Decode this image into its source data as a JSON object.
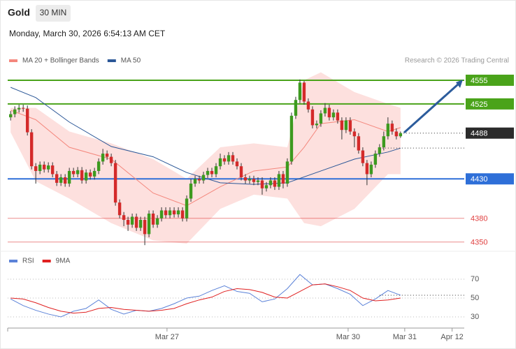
{
  "header": {
    "symbol": "Gold",
    "interval": "30 MIN",
    "timestamp": "Monday, March 30, 2026 6:54:13 AM CET",
    "copyright": "Research © 2026 Trading Central"
  },
  "chart_data": [
    {
      "type": "candlestick",
      "xlim": [
        -0.7,
        108.2
      ],
      "ylim": [
        4340,
        4570
      ],
      "up_color": "#3d9a1f",
      "down_color": "#d42a2a",
      "candles": {
        "open": [
          4508,
          4512,
          4518,
          4520,
          4519,
          4489,
          4446,
          4440,
          4448,
          4442,
          4447,
          4436,
          4425,
          4432,
          4424,
          4440,
          4436,
          4441,
          4428,
          4438,
          4433,
          4440,
          4452,
          4462,
          4458,
          4450,
          4400,
          4384,
          4378,
          4372,
          4382,
          4368,
          4378,
          4360,
          4386,
          4372,
          4380,
          4390,
          4384,
          4390,
          4385,
          4390,
          4380,
          4405,
          4424,
          4430,
          4428,
          4435,
          4440,
          4436,
          4446,
          4456,
          4452,
          4460,
          4452,
          4446,
          4432,
          4428,
          4430,
          4426,
          4428,
          4418,
          4422,
          4428,
          4420,
          4436,
          4424,
          4452,
          4510,
          4530,
          4552,
          4528,
          4518,
          4498,
          4500,
          4513,
          4520,
          4508,
          4514,
          4504,
          4492,
          4504,
          4490,
          4484,
          4466,
          4450,
          4436,
          4448,
          4462,
          4470,
          4484,
          4500,
          4490,
          4484
        ],
        "high": [
          4516,
          4522,
          4524,
          4524,
          4523,
          4493,
          4450,
          4452,
          4452,
          4451,
          4451,
          4440,
          4436,
          4436,
          4444,
          4444,
          4445,
          4445,
          4442,
          4442,
          4444,
          4456,
          4468,
          4466,
          4462,
          4454,
          4404,
          4388,
          4382,
          4386,
          4386,
          4382,
          4382,
          4390,
          4390,
          4384,
          4394,
          4394,
          4394,
          4394,
          4394,
          4394,
          4409,
          4430,
          4434,
          4434,
          4439,
          4444,
          4444,
          4450,
          4462,
          4460,
          4464,
          4464,
          4456,
          4450,
          4436,
          4434,
          4434,
          4432,
          4432,
          4426,
          4432,
          4432,
          4440,
          4440,
          4456,
          4514,
          4534,
          4556,
          4554,
          4532,
          4522,
          4504,
          4517,
          4526,
          4524,
          4518,
          4518,
          4508,
          4508,
          4508,
          4494,
          4488,
          4470,
          4454,
          4452,
          4466,
          4474,
          4490,
          4508,
          4504,
          4494,
          4490
        ],
        "low": [
          4504,
          4508,
          4514,
          4515,
          4485,
          4442,
          4424,
          4436,
          4438,
          4438,
          4432,
          4421,
          4421,
          4420,
          4420,
          4432,
          4432,
          4424,
          4424,
          4429,
          4429,
          4436,
          4448,
          4454,
          4446,
          4396,
          4380,
          4370,
          4364,
          4368,
          4364,
          4364,
          4346,
          4356,
          4368,
          4368,
          4376,
          4380,
          4380,
          4381,
          4381,
          4376,
          4376,
          4401,
          4420,
          4424,
          4424,
          4431,
          4432,
          4432,
          4442,
          4448,
          4448,
          4448,
          4442,
          4428,
          4424,
          4424,
          4422,
          4422,
          4410,
          4414,
          4418,
          4416,
          4416,
          4418,
          4420,
          4448,
          4506,
          4526,
          4524,
          4514,
          4494,
          4494,
          4496,
          4509,
          4504,
          4504,
          4500,
          4480,
          4488,
          4486,
          4470,
          4462,
          4446,
          4422,
          4432,
          4444,
          4458,
          4466,
          4480,
          4486,
          4480,
          4482
        ],
        "close": [
          4512,
          4518,
          4520,
          4519,
          4489,
          4446,
          4440,
          4448,
          4442,
          4447,
          4436,
          4425,
          4432,
          4424,
          4440,
          4436,
          4441,
          4428,
          4438,
          4433,
          4440,
          4452,
          4462,
          4458,
          4450,
          4400,
          4384,
          4378,
          4372,
          4382,
          4368,
          4378,
          4360,
          4386,
          4372,
          4380,
          4390,
          4384,
          4390,
          4385,
          4390,
          4380,
          4405,
          4424,
          4430,
          4428,
          4435,
          4440,
          4436,
          4446,
          4456,
          4452,
          4460,
          4452,
          4446,
          4432,
          4428,
          4430,
          4426,
          4428,
          4418,
          4422,
          4428,
          4420,
          4436,
          4424,
          4452,
          4510,
          4530,
          4552,
          4528,
          4518,
          4498,
          4500,
          4513,
          4520,
          4508,
          4514,
          4504,
          4492,
          4504,
          4490,
          4484,
          4466,
          4450,
          4436,
          4448,
          4462,
          4470,
          4484,
          4500,
          4490,
          4484,
          4488
        ]
      },
      "series": [
        {
          "name": "MA 20 + Bollinger Bands",
          "color": "#f4877d",
          "band_color": "#fde0de",
          "x": [
            0,
            6,
            14,
            24,
            34,
            42,
            50,
            58,
            66,
            70,
            74,
            82,
            90,
            93
          ],
          "values": [
            4517,
            4505,
            4470,
            4455,
            4412,
            4396,
            4420,
            4440,
            4445,
            4470,
            4500,
            4505,
            4490,
            4495
          ],
          "upper": [
            4520,
            4520,
            4490,
            4475,
            4455,
            4430,
            4470,
            4475,
            4470,
            4555,
            4565,
            4540,
            4525,
            4520
          ],
          "lower": [
            4489,
            4427,
            4405,
            4374,
            4352,
            4348,
            4392,
            4410,
            4405,
            4374,
            4370,
            4392,
            4436,
            4436
          ]
        },
        {
          "name": "MA 50",
          "color": "#2b5797",
          "x": [
            0,
            6,
            14,
            24,
            34,
            42,
            50,
            58,
            66,
            74,
            82,
            90,
            93
          ],
          "values": [
            4546,
            4533,
            4502,
            4471,
            4458,
            4438,
            4425,
            4423,
            4425,
            4440,
            4455,
            4464,
            4469
          ]
        }
      ],
      "levels": [
        {
          "value": 4555,
          "color": "#4aa31a",
          "style": "box",
          "line": "solid"
        },
        {
          "value": 4525,
          "color": "#4aa31a",
          "style": "box",
          "line": "solid"
        },
        {
          "value": 4488,
          "color": "#2b2b2b",
          "style": "box",
          "line": "dotted"
        },
        {
          "value": 4430,
          "color": "#2e6fd8",
          "style": "box",
          "line": "solid"
        },
        {
          "value": 4380,
          "color": "#e04040",
          "style": "text",
          "line": "solid"
        },
        {
          "value": 4350,
          "color": "#e04040",
          "style": "text",
          "line": "solid"
        }
      ]
    },
    {
      "type": "line",
      "xlim": [
        -0.7,
        108.2
      ],
      "ylim": [
        20,
        80
      ],
      "yticks": [
        30,
        50,
        70
      ],
      "grid": true,
      "xticks": [
        {
          "value": 37.3,
          "label": "Mar 27"
        },
        {
          "value": 80.5,
          "label": "Mar 30"
        },
        {
          "value": 94,
          "label": "Mar 31"
        },
        {
          "value": 105.3,
          "label": "Apr 12"
        }
      ],
      "series": [
        {
          "name": "RSI",
          "color": "#5b82d8",
          "x": [
            0,
            3,
            6,
            9,
            12,
            15,
            18,
            21,
            24,
            27,
            30,
            33,
            36,
            39,
            42,
            45,
            48,
            51,
            54,
            57,
            60,
            63,
            66,
            69,
            72,
            75,
            78,
            81,
            84,
            87,
            90,
            93
          ],
          "values": [
            49,
            42,
            37,
            33,
            30,
            36,
            39,
            48,
            38,
            33,
            37,
            36,
            39,
            44,
            50,
            52,
            58,
            63,
            57,
            55,
            46,
            49,
            60,
            75,
            64,
            65,
            60,
            54,
            42,
            49,
            58,
            53
          ]
        },
        {
          "name": "9MA",
          "color": "#e02020",
          "x": [
            0,
            3,
            6,
            9,
            12,
            15,
            18,
            21,
            24,
            27,
            30,
            33,
            36,
            39,
            42,
            45,
            48,
            51,
            54,
            57,
            60,
            63,
            66,
            69,
            72,
            75,
            78,
            81,
            84,
            87,
            90,
            93
          ],
          "values": [
            50,
            49,
            45,
            40,
            36,
            34,
            35,
            39,
            40,
            38,
            37,
            36,
            37,
            39,
            44,
            48,
            51,
            57,
            60,
            59,
            56,
            51,
            50,
            57,
            64,
            65,
            62,
            58,
            50,
            47,
            48,
            50
          ]
        }
      ]
    }
  ]
}
